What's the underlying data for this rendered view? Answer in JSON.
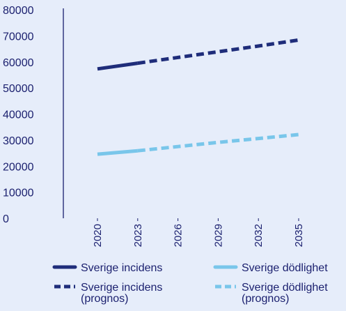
{
  "chart_data": {
    "type": "line",
    "x": [
      2020,
      2023,
      2026,
      2029,
      2032,
      2035
    ],
    "xticks": [
      "2020",
      "2023",
      "2026",
      "2029",
      "2032",
      "2035"
    ],
    "ylim": [
      0,
      80000
    ],
    "yticks": [
      0,
      10000,
      20000,
      30000,
      40000,
      50000,
      60000,
      70000,
      80000
    ],
    "xlabel": "",
    "ylabel": "",
    "grid": false,
    "legend_position": "bottom",
    "series": [
      {
        "name": "Sverige incidens",
        "x": [
          2020,
          2023
        ],
        "values": [
          57300,
          59500
        ],
        "color": "#1f2d7a",
        "style": "solid"
      },
      {
        "name": "Sverige incidens (prognos)",
        "x": [
          2023,
          2026,
          2029,
          2032,
          2035
        ],
        "values": [
          59500,
          61700,
          63900,
          66100,
          68400
        ],
        "color": "#1f2d7a",
        "style": "dashed"
      },
      {
        "name": "Sverige dödlighet",
        "x": [
          2020,
          2023
        ],
        "values": [
          24600,
          25900
        ],
        "color": "#79c6ea",
        "style": "solid"
      },
      {
        "name": "Sverige dödlighet (prognos)",
        "x": [
          2023,
          2026,
          2029,
          2032,
          2035
        ],
        "values": [
          25900,
          27500,
          29100,
          30600,
          32100
        ],
        "color": "#79c6ea",
        "style": "dashed"
      }
    ],
    "legend": [
      {
        "lines": [
          "Sverige incidens"
        ],
        "color": "#1f2d7a",
        "style": "solid"
      },
      {
        "lines": [
          "Sverige dödlighet"
        ],
        "color": "#79c6ea",
        "style": "solid"
      },
      {
        "lines": [
          "Sverige incidens",
          "(prognos)"
        ],
        "color": "#1f2d7a",
        "style": "dashed"
      },
      {
        "lines": [
          "Sverige dödlighet",
          "(prognos)"
        ],
        "color": "#79c6ea",
        "style": "dashed"
      }
    ]
  }
}
